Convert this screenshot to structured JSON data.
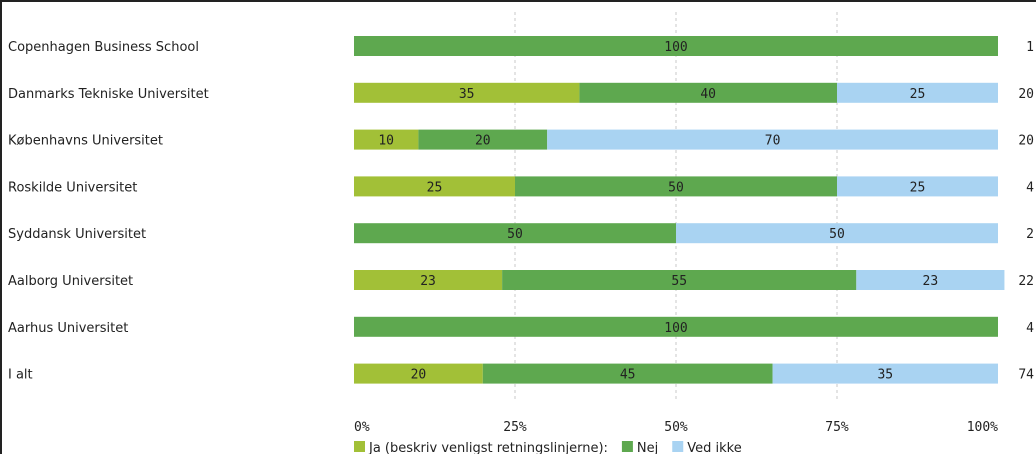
{
  "chart_data": {
    "type": "bar",
    "orientation": "horizontal",
    "stacked": "percent",
    "categories": [
      "Copenhagen Business School",
      "Danmarks Tekniske Universitet",
      "Københavns Universitet",
      "Roskilde Universitet",
      "Syddansk Universitet",
      "Aalborg Universitet",
      "Aarhus Universitet",
      "I alt"
    ],
    "series": [
      {
        "name": "Ja (beskriv venligst retningslinjerne):",
        "color": "#a2c037",
        "values": [
          0,
          35,
          10,
          25,
          0,
          23,
          0,
          20
        ]
      },
      {
        "name": "Nej",
        "color": "#5ea84f",
        "values": [
          100,
          40,
          20,
          50,
          50,
          55,
          100,
          45
        ]
      },
      {
        "name": "Ved ikke",
        "color": "#a9d3f2",
        "values": [
          0,
          25,
          70,
          25,
          50,
          23,
          0,
          35
        ]
      }
    ],
    "n_labels": [
      "1",
      "20",
      "20",
      "4",
      "2",
      "22",
      "4",
      "74"
    ],
    "xticks": [
      "0%",
      "25%",
      "50%",
      "75%",
      "100%"
    ],
    "xlim": [
      0,
      100
    ],
    "grid": true,
    "legend": "bottom"
  }
}
